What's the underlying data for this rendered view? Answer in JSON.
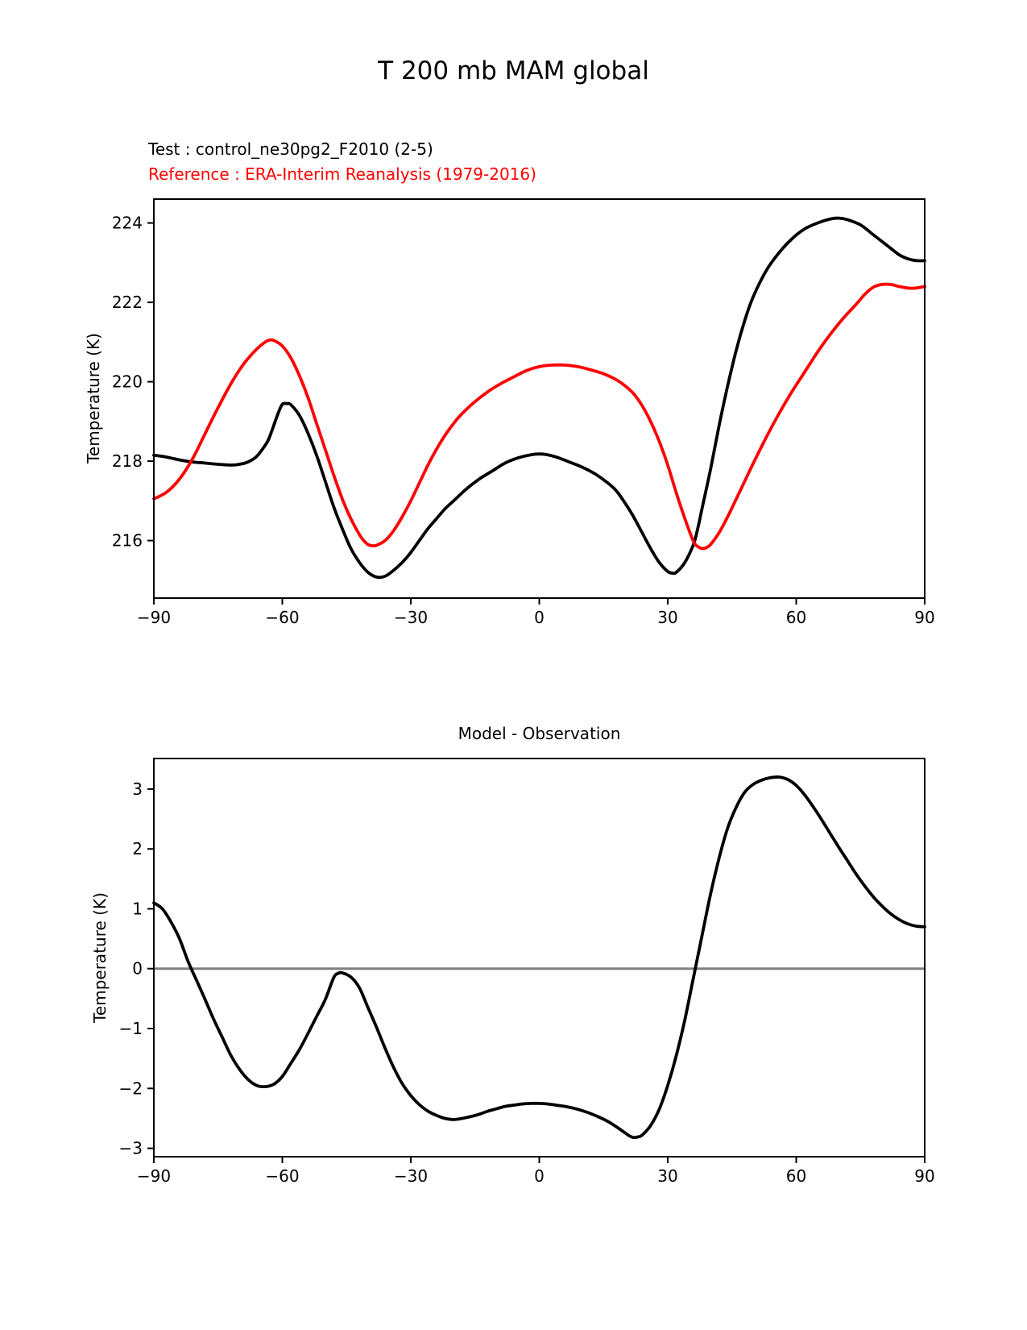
{
  "page": {
    "title": "T 200 mb MAM global"
  },
  "legend": {
    "test_label": "Test : control_ne30pg2_F2010 (2-5)",
    "test_color": "#000000",
    "reference_label": "Reference : ERA-Interim Reanalysis (1979-2016)",
    "reference_color": "#ff0000"
  },
  "chart_data": [
    {
      "type": "line",
      "title": "",
      "xlabel": "",
      "ylabel": "Temperature (K)",
      "xlim": [
        -90,
        90
      ],
      "ylim": [
        214.55,
        224.6
      ],
      "xticks": [
        -90,
        -60,
        -30,
        0,
        30,
        60,
        90
      ],
      "yticks": [
        216,
        218,
        220,
        222,
        224
      ],
      "grid": false,
      "legend_position": "above-left",
      "series": [
        {
          "id": "test",
          "name": "Test : control_ne30pg2_F2010 (2-5)",
          "color": "#000000",
          "x": [
            -90,
            -87,
            -84,
            -81,
            -78,
            -75,
            -72,
            -70,
            -68,
            -66,
            -64,
            -63,
            -61,
            -60,
            -59,
            -58,
            -56,
            -54,
            -52,
            -50,
            -48,
            -46,
            -44,
            -42,
            -40,
            -38,
            -36,
            -34,
            -32,
            -30,
            -28,
            -26,
            -24,
            -22,
            -20,
            -17,
            -14,
            -11,
            -8,
            -5,
            -2,
            0,
            2,
            4,
            7,
            10,
            13,
            16,
            18,
            20,
            22,
            24,
            26,
            28,
            30,
            31,
            32,
            34,
            36,
            37,
            38,
            40,
            42,
            44,
            46,
            48,
            50,
            53,
            56,
            59,
            62,
            65,
            68,
            70,
            72,
            75,
            78,
            81,
            84,
            86,
            88,
            90
          ],
          "y": [
            218.15,
            218.1,
            218.03,
            217.98,
            217.95,
            217.92,
            217.9,
            217.92,
            217.98,
            218.12,
            218.4,
            218.6,
            219.2,
            219.43,
            219.45,
            219.42,
            219.15,
            218.7,
            218.15,
            217.5,
            216.85,
            216.3,
            215.8,
            215.45,
            215.2,
            215.08,
            215.1,
            215.25,
            215.45,
            215.7,
            216.0,
            216.3,
            216.55,
            216.8,
            217.0,
            217.3,
            217.55,
            217.75,
            217.95,
            218.08,
            218.16,
            218.18,
            218.16,
            218.1,
            217.98,
            217.85,
            217.68,
            217.45,
            217.25,
            216.95,
            216.6,
            216.2,
            215.8,
            215.45,
            215.22,
            215.18,
            215.2,
            215.45,
            215.9,
            216.3,
            216.8,
            217.8,
            218.9,
            219.9,
            220.8,
            221.55,
            222.15,
            222.8,
            223.25,
            223.6,
            223.85,
            224.0,
            224.1,
            224.12,
            224.08,
            223.95,
            223.7,
            223.45,
            223.2,
            223.1,
            223.05,
            223.05
          ]
        },
        {
          "id": "reference",
          "name": "Reference : ERA-Interim Reanalysis (1979-2016)",
          "color": "#ff0000",
          "x": [
            -90,
            -87,
            -84,
            -81,
            -78,
            -75,
            -72,
            -69,
            -66,
            -64,
            -63,
            -62,
            -60,
            -58,
            -56,
            -54,
            -52,
            -50,
            -48,
            -46,
            -44,
            -42,
            -41,
            -40,
            -39,
            -38,
            -36,
            -34,
            -32,
            -30,
            -28,
            -26,
            -24,
            -22,
            -20,
            -18,
            -15,
            -12,
            -9,
            -6,
            -3,
            0,
            3,
            6,
            9,
            12,
            15,
            18,
            20,
            22,
            24,
            26,
            28,
            30,
            32,
            34,
            36,
            37,
            38,
            39,
            40,
            42,
            44,
            46,
            48,
            50,
            53,
            56,
            59,
            62,
            65,
            68,
            71,
            74,
            76,
            78,
            80,
            82,
            84,
            86,
            88,
            90
          ],
          "y": [
            217.05,
            217.22,
            217.55,
            218.05,
            218.7,
            219.35,
            219.95,
            220.45,
            220.82,
            221.0,
            221.05,
            221.04,
            220.9,
            220.6,
            220.15,
            219.6,
            218.95,
            218.3,
            217.65,
            217.05,
            216.55,
            216.15,
            216.0,
            215.9,
            215.87,
            215.88,
            216.0,
            216.25,
            216.6,
            217.0,
            217.45,
            217.9,
            218.3,
            218.65,
            218.95,
            219.2,
            219.5,
            219.75,
            219.95,
            220.12,
            220.28,
            220.38,
            220.42,
            220.42,
            220.38,
            220.3,
            220.2,
            220.05,
            219.9,
            219.7,
            219.4,
            219.0,
            218.5,
            217.9,
            217.2,
            216.55,
            215.98,
            215.85,
            215.8,
            215.82,
            215.9,
            216.2,
            216.6,
            217.05,
            217.5,
            217.95,
            218.6,
            219.2,
            219.75,
            220.25,
            220.75,
            221.2,
            221.6,
            221.95,
            222.2,
            222.38,
            222.45,
            222.45,
            222.4,
            222.36,
            222.36,
            222.4
          ]
        }
      ]
    },
    {
      "type": "line",
      "title": "Model - Observation",
      "xlabel": "",
      "ylabel": "Temperature (K)",
      "xlim": [
        -90,
        90
      ],
      "ylim": [
        -3.14,
        3.51
      ],
      "xticks": [
        -90,
        -60,
        -30,
        0,
        30,
        60,
        90
      ],
      "yticks": [
        -3,
        -2,
        -1,
        0,
        1,
        2,
        3
      ],
      "grid": false,
      "zero_line": true,
      "zero_line_color": "#808080",
      "series": [
        {
          "id": "difference",
          "name": "Model - Observation",
          "color": "#000000",
          "x": [
            -90,
            -88,
            -86,
            -84,
            -82,
            -80,
            -78,
            -76,
            -74,
            -72,
            -70,
            -68,
            -66,
            -64,
            -62,
            -60,
            -58,
            -56,
            -54,
            -52,
            -50,
            -48,
            -47,
            -46,
            -44,
            -42,
            -40,
            -38,
            -36,
            -34,
            -32,
            -30,
            -28,
            -26,
            -24,
            -22,
            -20,
            -18,
            -16,
            -14,
            -12,
            -10,
            -8,
            -6,
            -4,
            -2,
            0,
            2,
            4,
            6,
            8,
            10,
            12,
            14,
            16,
            18,
            20,
            21,
            22,
            23,
            24,
            26,
            28,
            30,
            32,
            34,
            36,
            37,
            38,
            40,
            42,
            44,
            46,
            48,
            50,
            52,
            54,
            56,
            58,
            60,
            62,
            64,
            66,
            68,
            70,
            72,
            74,
            76,
            78,
            80,
            82,
            84,
            86,
            88,
            90
          ],
          "y": [
            1.1,
            1.0,
            0.78,
            0.5,
            0.12,
            -0.2,
            -0.52,
            -0.85,
            -1.15,
            -1.45,
            -1.68,
            -1.85,
            -1.95,
            -1.97,
            -1.93,
            -1.8,
            -1.58,
            -1.35,
            -1.08,
            -0.8,
            -0.52,
            -0.15,
            -0.08,
            -0.07,
            -0.14,
            -0.32,
            -0.65,
            -0.98,
            -1.33,
            -1.65,
            -1.92,
            -2.12,
            -2.27,
            -2.38,
            -2.45,
            -2.5,
            -2.52,
            -2.5,
            -2.47,
            -2.43,
            -2.38,
            -2.34,
            -2.3,
            -2.28,
            -2.26,
            -2.25,
            -2.25,
            -2.26,
            -2.28,
            -2.3,
            -2.33,
            -2.37,
            -2.42,
            -2.48,
            -2.55,
            -2.64,
            -2.74,
            -2.79,
            -2.82,
            -2.81,
            -2.78,
            -2.62,
            -2.35,
            -1.95,
            -1.45,
            -0.85,
            -0.15,
            0.2,
            0.55,
            1.25,
            1.85,
            2.35,
            2.7,
            2.95,
            3.08,
            3.15,
            3.19,
            3.2,
            3.16,
            3.06,
            2.9,
            2.7,
            2.48,
            2.25,
            2.02,
            1.8,
            1.58,
            1.38,
            1.2,
            1.05,
            0.92,
            0.82,
            0.75,
            0.71,
            0.7
          ]
        }
      ]
    }
  ]
}
